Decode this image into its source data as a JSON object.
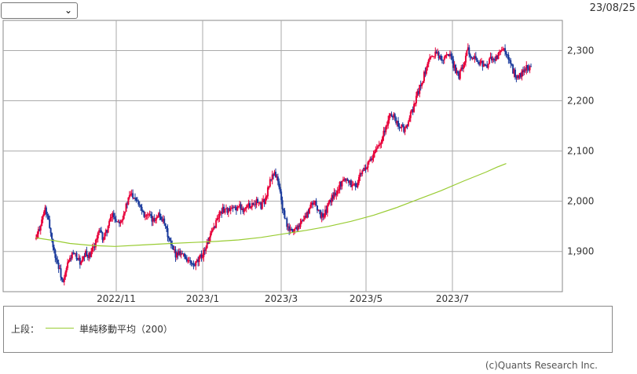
{
  "header": {
    "select_value": "",
    "date": "23/08/25"
  },
  "chart_data": {
    "type": "candlestick",
    "x_ticks": [
      "2022/11",
      "2023/1",
      "2023/3",
      "2023/5",
      "2023/7"
    ],
    "y_ticks": [
      "1,900",
      "2,000",
      "2,100",
      "2,200",
      "2,300"
    ],
    "ylim": [
      1820,
      2360
    ],
    "grid": true,
    "colors": {
      "up": "#e8003a",
      "down": "#1a3a9c",
      "ma": "#99cc33",
      "grid": "#aaaaaa"
    },
    "series": [
      {
        "name": "単純移動平均（200）",
        "points": [
          [
            0,
            1927
          ],
          [
            15,
            1922
          ],
          [
            30,
            1916
          ],
          [
            50,
            1912
          ],
          [
            70,
            1910
          ],
          [
            95,
            1913
          ],
          [
            120,
            1916
          ],
          [
            140,
            1918
          ],
          [
            160,
            1920
          ],
          [
            180,
            1923
          ],
          [
            200,
            1928
          ],
          [
            220,
            1935
          ],
          [
            240,
            1942
          ],
          [
            260,
            1950
          ],
          [
            280,
            1960
          ],
          [
            300,
            1972
          ],
          [
            320,
            1987
          ],
          [
            340,
            2004
          ],
          [
            360,
            2021
          ],
          [
            380,
            2040
          ],
          [
            400,
            2058
          ],
          [
            410,
            2068
          ],
          [
            418,
            2075
          ]
        ]
      }
    ],
    "price_path": [
      [
        0,
        1925
      ],
      [
        4,
        1955
      ],
      [
        8,
        1985
      ],
      [
        12,
        1950
      ],
      [
        16,
        1900
      ],
      [
        20,
        1870
      ],
      [
        24,
        1835
      ],
      [
        28,
        1875
      ],
      [
        32,
        1895
      ],
      [
        36,
        1890
      ],
      [
        40,
        1875
      ],
      [
        44,
        1895
      ],
      [
        48,
        1890
      ],
      [
        52,
        1915
      ],
      [
        56,
        1940
      ],
      [
        60,
        1925
      ],
      [
        64,
        1950
      ],
      [
        68,
        1975
      ],
      [
        72,
        1960
      ],
      [
        76,
        1965
      ],
      [
        80,
        1990
      ],
      [
        84,
        2015
      ],
      [
        88,
        2010
      ],
      [
        92,
        1995
      ],
      [
        96,
        1975
      ],
      [
        100,
        1970
      ],
      [
        104,
        1960
      ],
      [
        108,
        1975
      ],
      [
        112,
        1965
      ],
      [
        116,
        1940
      ],
      [
        120,
        1910
      ],
      [
        124,
        1895
      ],
      [
        128,
        1900
      ],
      [
        132,
        1890
      ],
      [
        136,
        1880
      ],
      [
        140,
        1870
      ],
      [
        144,
        1880
      ],
      [
        148,
        1895
      ],
      [
        152,
        1915
      ],
      [
        156,
        1935
      ],
      [
        160,
        1960
      ],
      [
        164,
        1980
      ],
      [
        168,
        1985
      ],
      [
        172,
        1980
      ],
      [
        176,
        1985
      ],
      [
        180,
        1990
      ],
      [
        184,
        1985
      ],
      [
        188,
        1990
      ],
      [
        192,
        1995
      ],
      [
        196,
        2000
      ],
      [
        200,
        1990
      ],
      [
        204,
        2005
      ],
      [
        208,
        2040
      ],
      [
        212,
        2060
      ],
      [
        216,
        2030
      ],
      [
        220,
        1975
      ],
      [
        224,
        1945
      ],
      [
        228,
        1940
      ],
      [
        232,
        1950
      ],
      [
        236,
        1960
      ],
      [
        240,
        1970
      ],
      [
        244,
        1990
      ],
      [
        248,
        2000
      ],
      [
        252,
        1975
      ],
      [
        256,
        1970
      ],
      [
        260,
        1995
      ],
      [
        264,
        2010
      ],
      [
        268,
        2025
      ],
      [
        272,
        2040
      ],
      [
        276,
        2045
      ],
      [
        280,
        2035
      ],
      [
        284,
        2030
      ],
      [
        288,
        2050
      ],
      [
        292,
        2065
      ],
      [
        296,
        2075
      ],
      [
        300,
        2090
      ],
      [
        304,
        2110
      ],
      [
        308,
        2130
      ],
      [
        312,
        2155
      ],
      [
        316,
        2175
      ],
      [
        320,
        2160
      ],
      [
        324,
        2150
      ],
      [
        328,
        2140
      ],
      [
        332,
        2165
      ],
      [
        336,
        2190
      ],
      [
        340,
        2220
      ],
      [
        344,
        2245
      ],
      [
        348,
        2270
      ],
      [
        352,
        2290
      ],
      [
        356,
        2300
      ],
      [
        360,
        2280
      ],
      [
        364,
        2295
      ],
      [
        368,
        2290
      ],
      [
        372,
        2265
      ],
      [
        376,
        2250
      ],
      [
        380,
        2275
      ],
      [
        384,
        2300
      ],
      [
        388,
        2290
      ],
      [
        392,
        2280
      ],
      [
        396,
        2275
      ],
      [
        400,
        2265
      ],
      [
        404,
        2285
      ],
      [
        408,
        2280
      ],
      [
        412,
        2295
      ],
      [
        416,
        2300
      ],
      [
        420,
        2280
      ],
      [
        424,
        2260
      ],
      [
        428,
        2245
      ],
      [
        432,
        2255
      ],
      [
        436,
        2265
      ],
      [
        440,
        2270
      ]
    ]
  },
  "legend": {
    "label": "上段：",
    "series_name": "単純移動平均（200）"
  },
  "footer": {
    "credit": "(c)Quants Research Inc."
  }
}
